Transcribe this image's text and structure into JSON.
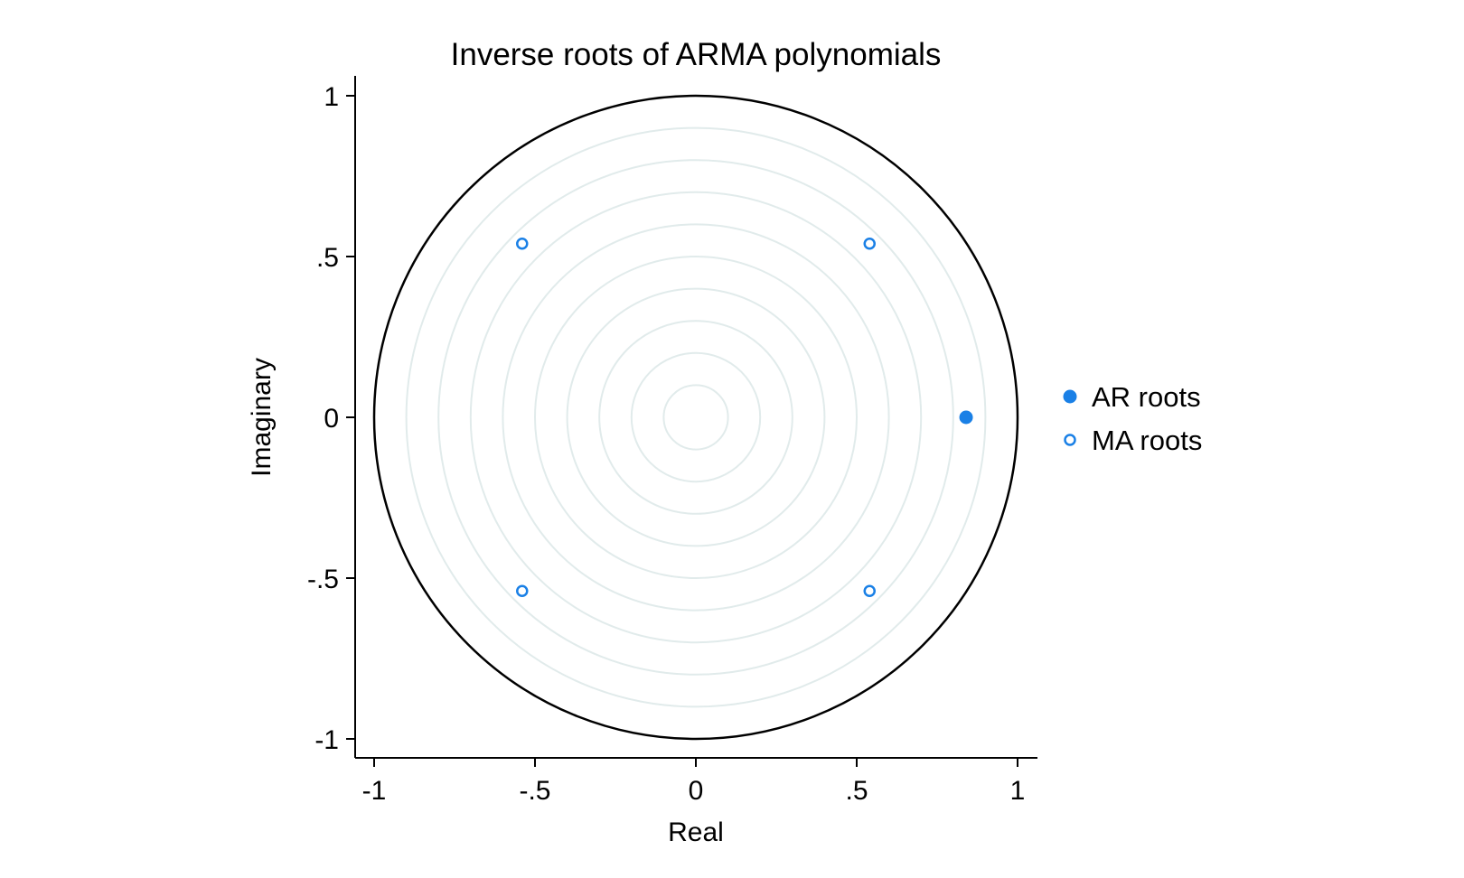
{
  "chart_data": {
    "type": "scatter",
    "title": "Inverse roots of ARMA polynomials",
    "xlabel": "Real",
    "ylabel": "Imaginary",
    "xlim": [
      -1,
      1
    ],
    "ylim": [
      -1,
      1
    ],
    "x_ticks": [
      -1,
      -0.5,
      0,
      0.5,
      1
    ],
    "x_tick_labels": [
      "-1",
      "-.5",
      "0",
      ".5",
      "1"
    ],
    "y_ticks": [
      -1,
      -0.5,
      0,
      0.5,
      1
    ],
    "y_tick_labels": [
      "-1",
      "-.5",
      "0",
      ".5",
      "1"
    ],
    "unit_circle": true,
    "grid": "concentric circles",
    "grid_radii": [
      0.1,
      0.2,
      0.3,
      0.4,
      0.5,
      0.6,
      0.7,
      0.8,
      0.9
    ],
    "legend_position": "right",
    "series": [
      {
        "name": "AR roots",
        "marker": "filled-circle",
        "color": "#1a80e6",
        "points": [
          {
            "x": 0.84,
            "y": 0.0
          }
        ]
      },
      {
        "name": "MA roots",
        "marker": "hollow-circle",
        "color": "#1a80e6",
        "points": [
          {
            "x": 0.54,
            "y": 0.54
          },
          {
            "x": -0.54,
            "y": 0.54
          },
          {
            "x": -0.54,
            "y": -0.54
          },
          {
            "x": 0.54,
            "y": -0.54
          }
        ]
      }
    ],
    "colors": {
      "grid": "#e1ebeb",
      "circle": "#000000",
      "axis": "#000000"
    }
  }
}
